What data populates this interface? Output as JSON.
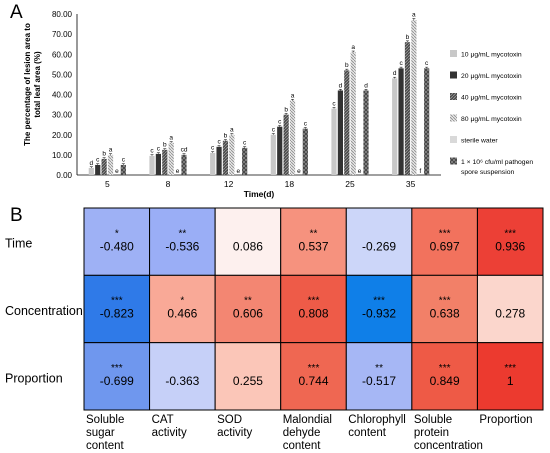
{
  "panel_labels": {
    "a": "A",
    "b": "B"
  },
  "chart_data": [
    {
      "type": "bar",
      "panel": "A",
      "ylabel": "The percentage of lesion area to total leaf area (%)",
      "xlabel": "Time(d)",
      "ylim": [
        0,
        80
      ],
      "yticks": [
        "0.00",
        "10.00",
        "20.00",
        "30.00",
        "40.00",
        "50.00",
        "60.00",
        "70.00",
        "80.00"
      ],
      "grid": false,
      "legend_position": "right",
      "categories": [
        "5",
        "8",
        "12",
        "18",
        "25",
        "35"
      ],
      "series": [
        {
          "name": "10 μg/mL mycotoxin",
          "values": [
            3.5,
            9.5,
            11,
            20,
            33,
            48
          ],
          "letters": [
            "d",
            "c",
            "c",
            "c",
            "c",
            "d"
          ],
          "color": "#c8c8c8",
          "pattern": "solid-light"
        },
        {
          "name": "20 μg/mL mycotoxin",
          "values": [
            5,
            10.5,
            14,
            24,
            42,
            53
          ],
          "letters": [
            "c",
            "c",
            "c",
            "c",
            "d",
            "c"
          ],
          "color": "#333333",
          "pattern": "solid-dark"
        },
        {
          "name": "40 μg/mL mycotoxin",
          "values": [
            8,
            12.5,
            17,
            30,
            52,
            66
          ],
          "letters": [
            "b",
            "b",
            "b",
            "b",
            "b",
            "b"
          ],
          "color": "#5a5a5a",
          "pattern": "hatch"
        },
        {
          "name": "80 μg/mL mycotoxin",
          "values": [
            10,
            16,
            20,
            37,
            61,
            77
          ],
          "letters": [
            "a",
            "a",
            "a",
            "a",
            "a",
            "a"
          ],
          "color": "#d8d8d8",
          "pattern": "dots"
        },
        {
          "name": "sterile water",
          "values": [
            0,
            0,
            0,
            0,
            0,
            0
          ],
          "letters": [
            "e",
            "e",
            "e",
            "e",
            "e",
            "f"
          ],
          "color": "#d9d9d9",
          "pattern": "solid-light"
        },
        {
          "name": "1 × 10⁶ cfu/ml pathogen spore suspension",
          "values": [
            5,
            10,
            13.5,
            23,
            42,
            53
          ],
          "letters": [
            "c",
            "cd",
            "c",
            "c",
            "d",
            "c"
          ],
          "color": "#6b6b6b",
          "pattern": "crosshatch"
        }
      ]
    },
    {
      "type": "heatmap",
      "panel": "B",
      "rows": [
        "Time",
        "Concentration",
        "Proportion"
      ],
      "columns": [
        "Soluble sugar content",
        "CAT activity",
        "SOD activity",
        "Malondial dehyde content",
        "Chlorophyll content",
        "Soluble protein concentration",
        "Proportion"
      ],
      "column_label_lines": [
        [
          "Soluble",
          "sugar",
          "content"
        ],
        [
          "CAT",
          "activity"
        ],
        [
          "SOD",
          "activity"
        ],
        [
          "Malondial",
          "dehyde",
          "content"
        ],
        [
          "Chlorophyll",
          "content"
        ],
        [
          "Soluble",
          "protein",
          "concentration"
        ],
        [
          "Proportion"
        ]
      ],
      "values": [
        [
          -0.48,
          -0.536,
          0.086,
          0.537,
          -0.269,
          0.697,
          0.936
        ],
        [
          -0.823,
          0.466,
          0.606,
          0.808,
          -0.932,
          0.638,
          0.278
        ],
        [
          -0.699,
          -0.363,
          0.255,
          0.744,
          -0.517,
          0.849,
          1
        ]
      ],
      "display": [
        [
          "-0.480",
          "-0.536",
          "0.086",
          "0.537",
          "-0.269",
          "0.697",
          "0.936"
        ],
        [
          "-0.823",
          "0.466",
          "0.606",
          "0.808",
          "-0.932",
          "0.638",
          "0.278"
        ],
        [
          "-0.699",
          "-0.363",
          "0.255",
          "0.744",
          "-0.517",
          "0.849",
          "1"
        ]
      ],
      "significance": [
        [
          "*",
          "**",
          "",
          "**",
          "",
          "***",
          "***"
        ],
        [
          "***",
          "*",
          "**",
          "***",
          "***",
          "***",
          ""
        ],
        [
          "***",
          "",
          "",
          "***",
          "**",
          "***",
          "***"
        ]
      ],
      "colors": [
        [
          "#9eb1f5",
          "#9aaef6",
          "#fdf0ee",
          "#f6927e",
          "#ccd6f9",
          "#f2725d",
          "#ec4036"
        ],
        [
          "#2f7ae8",
          "#f9a997",
          "#f38672",
          "#ee5b48",
          "#0f7fe8",
          "#f28068",
          "#fbd6cc"
        ],
        [
          "#6f97ee",
          "#c6d0f8",
          "#fbc6b8",
          "#ef6752",
          "#a6b7f5",
          "#ee5a46",
          "#ec3a2f"
        ]
      ]
    }
  ]
}
